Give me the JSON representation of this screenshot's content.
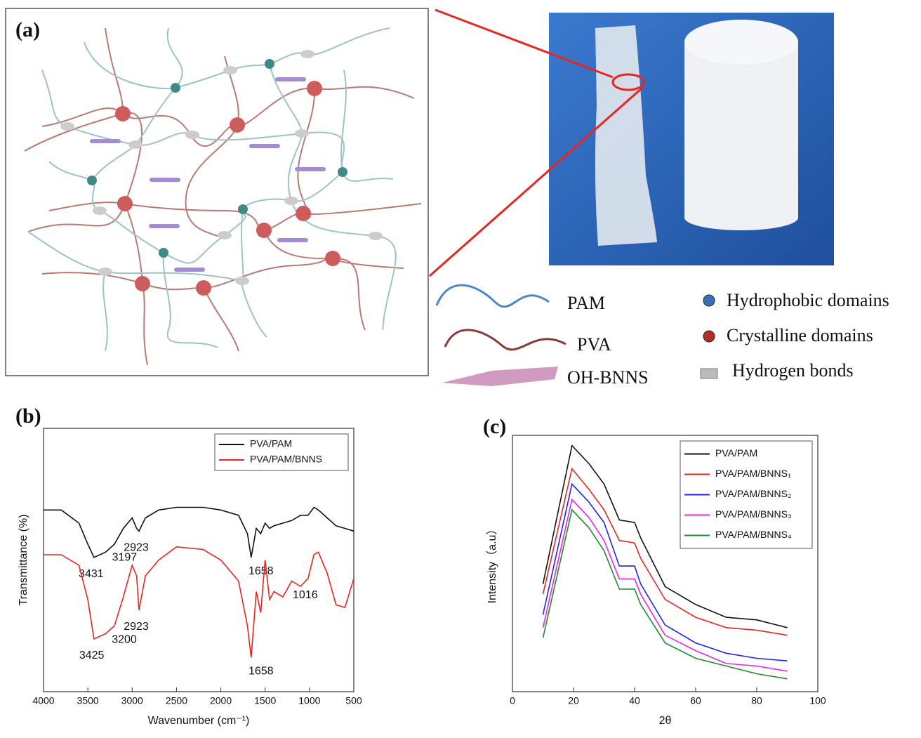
{
  "panel_a": {
    "label": "(a)",
    "legend": {
      "pam": "PAM",
      "pva": "PVA",
      "bnns": "OH-BNNS",
      "hydrophobic": "Hydrophobic domains",
      "crystalline": "Crystalline domains",
      "hydrogen": "Hydrogen bonds"
    }
  },
  "chart_data": [
    {
      "type": "line",
      "label": "(b)",
      "xlabel": "Wavenumber (cm⁻¹)",
      "ylabel": "Transmittance (%)",
      "xlim": [
        4000,
        500
      ],
      "xticks": [
        4000,
        3500,
        3000,
        2500,
        2000,
        1500,
        1000,
        500
      ],
      "ylim": [
        0,
        100
      ],
      "grid": false,
      "legend": "top-right",
      "x": [
        4000,
        3800,
        3600,
        3500,
        3431,
        3300,
        3200,
        3100,
        3000,
        2950,
        2923,
        2850,
        2700,
        2500,
        2200,
        2000,
        1800,
        1700,
        1658,
        1600,
        1550,
        1500,
        1450,
        1400,
        1300,
        1200,
        1100,
        1016,
        950,
        900,
        800,
        700,
        600,
        500
      ],
      "series": [
        {
          "name": "PVA/PAM",
          "color": "#111111",
          "values": [
            69,
            69,
            64,
            56,
            51,
            53,
            56,
            62,
            66,
            62,
            61,
            66,
            69,
            70,
            70,
            69,
            67,
            60,
            51,
            62,
            60,
            64,
            62,
            63,
            64,
            65,
            67,
            67,
            70,
            69,
            66,
            63,
            62,
            61
          ],
          "annotations": [
            3431,
            3197,
            2923,
            1658
          ]
        },
        {
          "name": "PVA/PAM/BNNS",
          "color": "#e8251f",
          "values": [
            52,
            52,
            48,
            35,
            20,
            22,
            25,
            36,
            48,
            44,
            31,
            44,
            50,
            55,
            54,
            50,
            42,
            25,
            13,
            38,
            30,
            50,
            35,
            38,
            36,
            42,
            40,
            43,
            52,
            53,
            45,
            33,
            32,
            43
          ],
          "annotations": [
            3425,
            3200,
            2923,
            1658,
            1016
          ]
        }
      ]
    },
    {
      "type": "line",
      "label": "(c)",
      "xlabel": "2θ",
      "ylabel": "Intensity（a.u）",
      "xlim": [
        0,
        100
      ],
      "xticks": [
        0,
        20,
        40,
        60,
        80,
        100
      ],
      "ylim": [
        0,
        100
      ],
      "grid": false,
      "legend": "top-right",
      "x": [
        10,
        19.5,
        25,
        30,
        35,
        40,
        42,
        50,
        60,
        70,
        80,
        90
      ],
      "series": [
        {
          "name": "PVA/PAM",
          "color": "#111111",
          "values": [
            42,
            96,
            89,
            81,
            67,
            66,
            60,
            41,
            34,
            29,
            28,
            25
          ]
        },
        {
          "name": "PVA/PAM/BNNS₁",
          "color": "#e8251f",
          "values": [
            38,
            87,
            79,
            71,
            59,
            58,
            52,
            36,
            29,
            25,
            24,
            22
          ]
        },
        {
          "name": "PVA/PAM/BNNS₂",
          "color": "#2222ee",
          "values": [
            30,
            81,
            74,
            66,
            49,
            49,
            42,
            26,
            19,
            15,
            13,
            12
          ]
        },
        {
          "name": "PVA/PAM/BNNS₃",
          "color": "#ee22ee",
          "values": [
            25,
            75,
            68,
            59,
            44,
            44,
            38,
            22,
            16,
            11,
            10,
            8
          ]
        },
        {
          "name": "PVA/PAM/BNNS₄",
          "color": "#1f8a2a",
          "values": [
            21,
            71,
            64,
            55,
            40,
            40,
            34,
            19,
            13,
            10,
            7,
            5
          ]
        }
      ]
    }
  ]
}
